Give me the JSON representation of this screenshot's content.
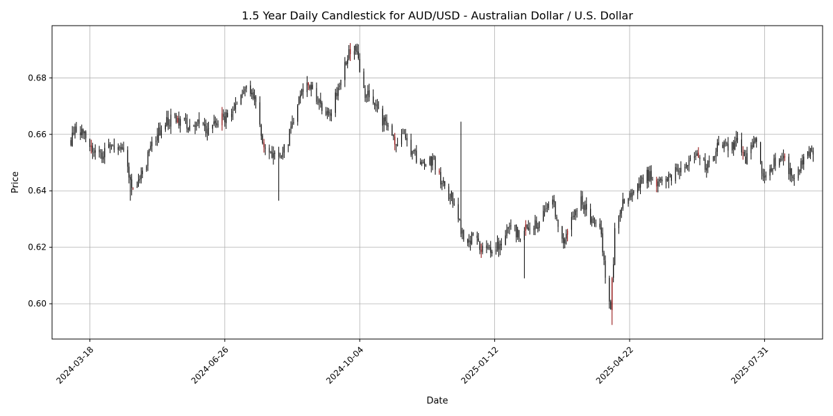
{
  "chart_data": {
    "type": "candlestick",
    "title": "1.5 Year Daily Candlestick for AUD/USD - Australian Dollar / U.S. Dollar",
    "xlabel": "Date",
    "ylabel": "Price",
    "x_range": [
      "2024-02-19",
      "2025-09-12"
    ],
    "ylim": [
      0.5875,
      0.6985
    ],
    "x_ticks": [
      "2024-03-18",
      "2024-06-26",
      "2024-10-04",
      "2025-01-12",
      "2025-04-22",
      "2025-07-31"
    ],
    "y_ticks": [
      0.6,
      0.62,
      0.64,
      0.66,
      0.68
    ],
    "y_tick_labels": [
      "0.60",
      "0.62",
      "0.64",
      "0.66",
      "0.68"
    ],
    "grid": true,
    "colors": {
      "up": "#000000",
      "down": "#000000",
      "accent_marks": "#8b0000",
      "grid": "#b0b0b0"
    },
    "anchors": [
      [
        "2024-03-04",
        0.658
      ],
      [
        "2024-03-08",
        0.662
      ],
      [
        "2024-03-14",
        0.659
      ],
      [
        "2024-03-21",
        0.653
      ],
      [
        "2024-03-28",
        0.653
      ],
      [
        "2024-04-05",
        0.656
      ],
      [
        "2024-04-12",
        0.653
      ],
      [
        "2024-04-18",
        0.643
      ],
      [
        "2024-04-22",
        0.642
      ],
      [
        "2024-04-30",
        0.652
      ],
      [
        "2024-05-07",
        0.66
      ],
      [
        "2024-05-15",
        0.665
      ],
      [
        "2024-05-22",
        0.665
      ],
      [
        "2024-05-30",
        0.663
      ],
      [
        "2024-06-06",
        0.665
      ],
      [
        "2024-06-14",
        0.661
      ],
      [
        "2024-06-21",
        0.665
      ],
      [
        "2024-06-28",
        0.666
      ],
      [
        "2024-07-05",
        0.671
      ],
      [
        "2024-07-11",
        0.676
      ],
      [
        "2024-07-17",
        0.674
      ],
      [
        "2024-07-25",
        0.656
      ],
      [
        "2024-08-01",
        0.653
      ],
      [
        "2024-08-05",
        0.65
      ],
      [
        "2024-08-12",
        0.658
      ],
      [
        "2024-08-19",
        0.672
      ],
      [
        "2024-08-26",
        0.678
      ],
      [
        "2024-09-03",
        0.673
      ],
      [
        "2024-09-11",
        0.666
      ],
      [
        "2024-09-18",
        0.676
      ],
      [
        "2024-09-25",
        0.688
      ],
      [
        "2024-10-01",
        0.69
      ],
      [
        "2024-10-07",
        0.675
      ],
      [
        "2024-10-14",
        0.672
      ],
      [
        "2024-10-23",
        0.663
      ],
      [
        "2024-10-30",
        0.657
      ],
      [
        "2024-11-06",
        0.662
      ],
      [
        "2024-11-12",
        0.653
      ],
      [
        "2024-11-20",
        0.65
      ],
      [
        "2024-11-28",
        0.65
      ],
      [
        "2024-12-05",
        0.642
      ],
      [
        "2024-12-12",
        0.637
      ],
      [
        "2024-12-19",
        0.624
      ],
      [
        "2024-12-27",
        0.623
      ],
      [
        "2025-01-03",
        0.62
      ],
      [
        "2025-01-10",
        0.62
      ],
      [
        "2025-01-17",
        0.62
      ],
      [
        "2025-01-24",
        0.628
      ],
      [
        "2025-01-31",
        0.623
      ],
      [
        "2025-02-05",
        0.627
      ],
      [
        "2025-02-12",
        0.628
      ],
      [
        "2025-02-19",
        0.635
      ],
      [
        "2025-02-24",
        0.637
      ],
      [
        "2025-03-03",
        0.622
      ],
      [
        "2025-03-10",
        0.63
      ],
      [
        "2025-03-17",
        0.636
      ],
      [
        "2025-03-24",
        0.63
      ],
      [
        "2025-03-31",
        0.629
      ],
      [
        "2025-04-04",
        0.61
      ],
      [
        "2025-04-08",
        0.598
      ],
      [
        "2025-04-11",
        0.625
      ],
      [
        "2025-04-18",
        0.637
      ],
      [
        "2025-04-25",
        0.64
      ],
      [
        "2025-05-05",
        0.646
      ],
      [
        "2025-05-12",
        0.642
      ],
      [
        "2025-05-21",
        0.645
      ],
      [
        "2025-05-28",
        0.647
      ],
      [
        "2025-06-05",
        0.65
      ],
      [
        "2025-06-12",
        0.652
      ],
      [
        "2025-06-18",
        0.648
      ],
      [
        "2025-06-27",
        0.656
      ],
      [
        "2025-07-04",
        0.656
      ],
      [
        "2025-07-11",
        0.657
      ],
      [
        "2025-07-17",
        0.651
      ],
      [
        "2025-07-24",
        0.658
      ],
      [
        "2025-07-31",
        0.644
      ],
      [
        "2025-08-07",
        0.65
      ],
      [
        "2025-08-14",
        0.653
      ],
      [
        "2025-08-21",
        0.644
      ],
      [
        "2025-08-28",
        0.65
      ],
      [
        "2025-09-04",
        0.654
      ],
      [
        "2025-09-05",
        0.653
      ]
    ],
    "spikes": [
      {
        "date": "2024-04-17",
        "low": 0.6365
      },
      {
        "date": "2024-08-05",
        "low": 0.6365
      },
      {
        "date": "2024-12-18",
        "high": 0.6645
      },
      {
        "date": "2025-02-03",
        "low": 0.609
      },
      {
        "date": "2025-04-09",
        "low": 0.5925
      }
    ]
  }
}
